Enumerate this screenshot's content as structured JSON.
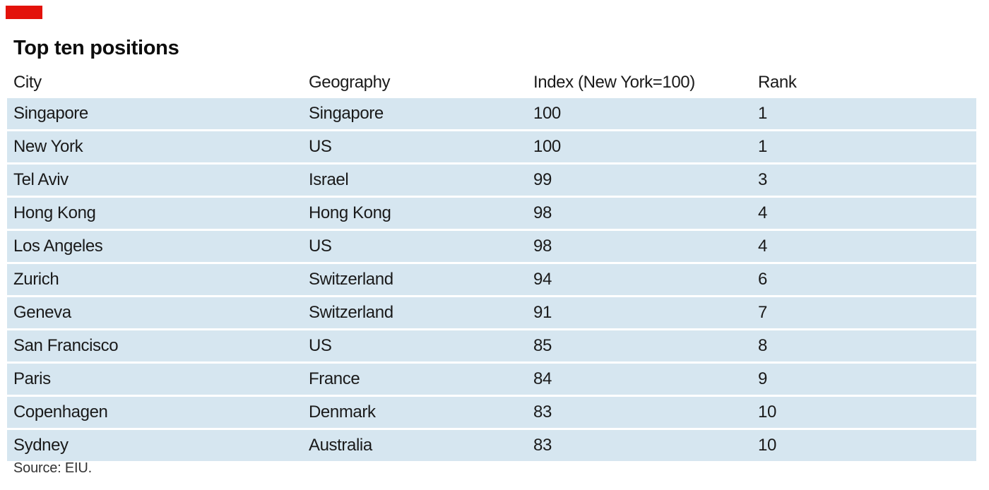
{
  "brand": {
    "tag_color": "#e3120b"
  },
  "title": "Top ten positions",
  "source": "Source: EIU.",
  "chart_data": {
    "type": "table",
    "title": "Top ten positions",
    "columns": [
      "City",
      "Geography",
      "Index (New York=100)",
      "Rank"
    ],
    "rows": [
      [
        "Singapore",
        "Singapore",
        "100",
        "1"
      ],
      [
        "New York",
        "US",
        "100",
        "1"
      ],
      [
        "Tel Aviv",
        "Israel",
        "99",
        "3"
      ],
      [
        "Hong Kong",
        "Hong Kong",
        "98",
        "4"
      ],
      [
        "Los Angeles",
        "US",
        "98",
        "4"
      ],
      [
        "Zurich",
        "Switzerland",
        "94",
        "6"
      ],
      [
        "Geneva",
        "Switzerland",
        "91",
        "7"
      ],
      [
        "San Francisco",
        "US",
        "85",
        "8"
      ],
      [
        "Paris",
        "France",
        "84",
        "9"
      ],
      [
        "Copenhagen",
        "Denmark",
        "83",
        "10"
      ],
      [
        "Sydney",
        "Australia",
        "83",
        "10"
      ]
    ],
    "row_color": "#d6e6f0",
    "source": "Source: EIU."
  }
}
